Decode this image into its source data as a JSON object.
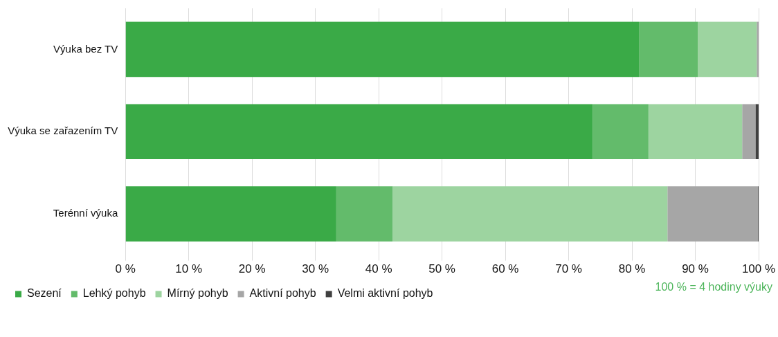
{
  "chart_data": {
    "type": "bar",
    "orientation": "horizontal",
    "stacked": true,
    "categories": [
      "Výuka bez TV",
      "Výuka se zařazením TV",
      "Terénní výuka"
    ],
    "series": [
      {
        "name": "Sezení",
        "color": "#3aaa47",
        "values": [
          81.1,
          73.8,
          33.3
        ]
      },
      {
        "name": "Lehký pohyb",
        "color": "#63bb6b",
        "values": [
          9.3,
          8.8,
          8.9
        ]
      },
      {
        "name": "Mírný pohyb",
        "color": "#9dd4a0",
        "values": [
          9.3,
          14.8,
          43.4
        ]
      },
      {
        "name": "Aktivní pohyb",
        "color": "#a6a6a6",
        "values": [
          0.3,
          2.1,
          14.3
        ]
      },
      {
        "name": "Velmi aktivní pohyb",
        "color": "#404040",
        "values": [
          0,
          0.5,
          0.1
        ]
      }
    ],
    "xlim": [
      0,
      100
    ],
    "xticks": [
      {
        "value": 0,
        "label": "0 %"
      },
      {
        "value": 10,
        "label": "10 %"
      },
      {
        "value": 20,
        "label": "20 %"
      },
      {
        "value": 30,
        "label": "30 %"
      },
      {
        "value": 40,
        "label": "40 %"
      },
      {
        "value": 50,
        "label": "50 %"
      },
      {
        "value": 60,
        "label": "60 %"
      },
      {
        "value": 70,
        "label": "70 %"
      },
      {
        "value": 80,
        "label": "80 %"
      },
      {
        "value": 90,
        "label": "90 %"
      },
      {
        "value": 100,
        "label": "100 %"
      }
    ],
    "grid": "x",
    "legend": "bottom",
    "annotations": [
      "100 % = 4 hodiny výuky"
    ]
  }
}
